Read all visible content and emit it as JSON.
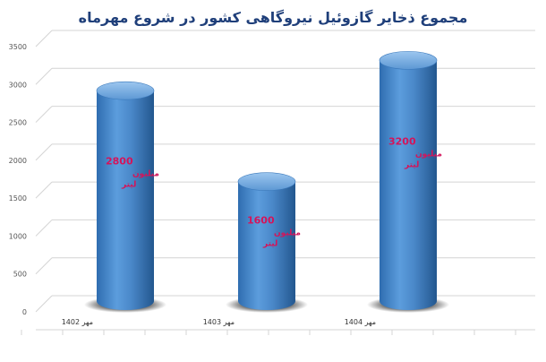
{
  "chart_data": {
    "type": "bar",
    "title": "مجموع ذخایر گازوئیل نیروگاهی کشور در شروع مهرماه",
    "categories": [
      "مهر 1402",
      "مهر 1403",
      "مهر 1404"
    ],
    "values": [
      2800,
      1600,
      3200
    ],
    "data_labels": [
      {
        "value": "2800",
        "unit": "میلیون",
        "unit2": "لیتر"
      },
      {
        "value": "1600",
        "unit": "میلیون",
        "unit2": "لیتر"
      },
      {
        "value": "3200",
        "unit": "میلیون",
        "unit2": "لیتر"
      }
    ],
    "yticks": [
      0,
      500,
      1000,
      1500,
      2000,
      2500,
      3000,
      3500
    ],
    "ylim": [
      0,
      3500
    ],
    "grid": true,
    "colors": {
      "bar_body": "#4f8fd1",
      "bar_highlight": "#9cc6ef",
      "bar_shadow": "#1d4f86",
      "grid": "#d4d4d4",
      "data_label": "#d4145a",
      "title": "#1f3f7a"
    }
  }
}
